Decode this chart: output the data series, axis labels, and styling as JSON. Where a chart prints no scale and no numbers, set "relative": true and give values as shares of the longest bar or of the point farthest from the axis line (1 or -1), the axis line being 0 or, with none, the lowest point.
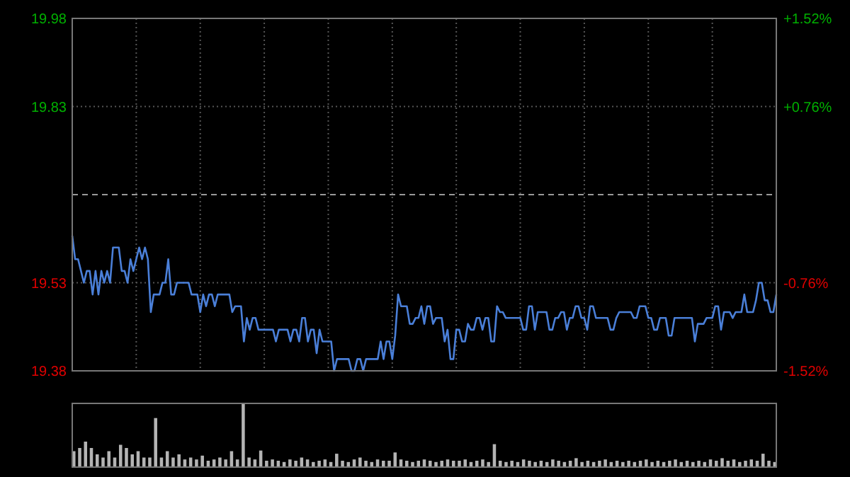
{
  "chart_data": [
    {
      "type": "line",
      "color": "#4a7fd8",
      "categories": [
        null,
        null,
        null,
        null,
        null,
        null,
        null,
        null,
        null,
        null,
        null,
        null,
        null,
        null,
        null,
        null,
        null,
        null,
        null,
        null,
        null,
        null,
        null,
        null,
        null,
        null,
        null,
        null,
        null,
        null,
        null,
        null,
        null,
        null,
        null,
        null,
        null,
        null,
        null,
        null,
        null,
        null,
        null,
        null,
        null,
        null,
        null,
        null,
        null,
        null,
        null,
        null,
        null,
        null,
        null,
        null,
        null,
        null,
        null,
        null,
        null,
        null,
        null,
        null,
        null,
        null,
        null,
        null,
        null,
        null,
        null,
        null,
        null,
        null,
        null,
        null,
        null,
        null,
        null,
        null,
        null,
        null,
        null,
        null,
        null,
        null,
        null,
        null,
        null,
        null,
        null,
        null,
        null,
        null,
        null,
        null,
        null,
        null,
        null,
        null,
        null,
        null,
        null,
        null,
        null,
        null,
        null,
        null,
        null,
        null,
        null,
        null,
        null,
        null,
        null,
        null,
        null,
        null,
        null,
        null,
        null,
        null,
        null,
        null,
        null,
        null,
        null,
        null,
        null,
        null,
        null,
        null,
        null,
        null,
        null,
        null,
        null,
        null,
        null,
        null,
        null,
        null,
        null,
        null,
        null,
        null,
        null,
        null,
        null,
        null,
        null,
        null,
        null,
        null,
        null,
        null,
        null,
        null,
        null,
        null,
        null,
        null,
        null,
        null,
        null,
        null,
        null,
        null,
        null,
        null,
        null,
        null,
        null,
        null,
        null,
        null,
        null,
        null,
        null,
        null,
        null,
        null,
        null,
        null,
        null,
        null,
        null,
        null,
        null,
        null,
        null,
        null,
        null,
        null,
        null,
        null,
        null,
        null,
        null,
        null,
        null,
        null,
        null,
        null,
        null,
        null,
        null,
        null,
        null,
        null,
        null,
        null,
        null,
        null,
        null,
        null,
        null,
        null,
        null,
        null,
        null,
        null,
        null,
        null,
        null,
        null,
        null,
        null,
        null,
        null,
        null,
        null,
        null,
        null,
        null,
        null,
        null,
        null,
        null,
        null,
        null,
        null,
        null
      ],
      "values": [
        19.61,
        19.57,
        19.57,
        19.55,
        19.53,
        19.55,
        19.55,
        19.51,
        19.55,
        19.51,
        19.55,
        19.53,
        19.55,
        19.53,
        19.59,
        19.59,
        19.59,
        19.55,
        19.55,
        19.53,
        19.57,
        19.55,
        19.57,
        19.59,
        19.57,
        19.59,
        19.57,
        19.48,
        19.51,
        19.51,
        19.51,
        19.53,
        19.53,
        19.57,
        19.51,
        19.51,
        19.53,
        19.53,
        19.53,
        19.53,
        19.53,
        19.51,
        19.51,
        19.51,
        19.48,
        19.51,
        19.49,
        19.51,
        19.51,
        19.49,
        19.51,
        19.51,
        19.51,
        19.51,
        19.51,
        19.48,
        19.49,
        19.49,
        19.49,
        19.43,
        19.47,
        19.45,
        19.47,
        19.47,
        19.45,
        19.45,
        19.45,
        19.45,
        19.45,
        19.45,
        19.43,
        19.45,
        19.45,
        19.45,
        19.45,
        19.43,
        19.45,
        19.45,
        19.43,
        19.47,
        19.47,
        19.43,
        19.45,
        19.45,
        19.41,
        19.45,
        19.43,
        19.43,
        19.43,
        19.43,
        19.38,
        19.4,
        19.4,
        19.4,
        19.4,
        19.4,
        19.38,
        19.38,
        19.4,
        19.4,
        19.38,
        19.4,
        19.4,
        19.4,
        19.4,
        19.4,
        19.43,
        19.4,
        19.43,
        19.43,
        19.4,
        19.44,
        19.51,
        19.49,
        19.49,
        19.49,
        19.46,
        19.46,
        19.47,
        19.47,
        19.49,
        19.46,
        19.49,
        19.49,
        19.46,
        19.47,
        19.47,
        19.47,
        19.43,
        19.45,
        19.4,
        19.4,
        19.45,
        19.45,
        19.43,
        19.43,
        19.46,
        19.45,
        19.45,
        19.47,
        19.47,
        19.45,
        19.47,
        19.47,
        19.43,
        19.43,
        19.49,
        19.48,
        19.48,
        19.47,
        19.47,
        19.47,
        19.47,
        19.47,
        19.47,
        19.45,
        19.45,
        19.49,
        19.49,
        19.45,
        19.48,
        19.48,
        19.48,
        19.48,
        19.45,
        19.45,
        19.47,
        19.47,
        19.48,
        19.48,
        19.45,
        19.47,
        19.47,
        19.49,
        19.49,
        19.47,
        19.47,
        19.45,
        19.49,
        19.49,
        19.47,
        19.47,
        19.47,
        19.47,
        19.47,
        19.45,
        19.45,
        19.47,
        19.48,
        19.48,
        19.48,
        19.48,
        19.48,
        19.47,
        19.47,
        19.49,
        19.49,
        19.49,
        19.47,
        19.47,
        19.45,
        19.45,
        19.47,
        19.47,
        19.47,
        19.44,
        19.44,
        19.47,
        19.47,
        19.47,
        19.47,
        19.47,
        19.47,
        19.47,
        19.43,
        19.46,
        19.46,
        19.46,
        19.47,
        19.47,
        19.47,
        19.49,
        19.49,
        19.45,
        19.48,
        19.48,
        19.48,
        19.47,
        19.48,
        19.48,
        19.48,
        19.51,
        19.48,
        19.48,
        19.48,
        19.5,
        19.53,
        19.53,
        19.5,
        19.5,
        19.48,
        19.48,
        19.51
      ],
      "ylim": [
        19.38,
        19.98
      ],
      "yticks": [
        19.38,
        19.53,
        19.83,
        19.98
      ],
      "y2lim": [
        -1.52,
        1.52
      ],
      "y2ticks": [
        {
          "value": -1.52,
          "label": "-1.52%"
        },
        {
          "value": -0.76,
          "label": "-0.76%"
        },
        {
          "value": 0.76,
          "label": "+0.76%"
        },
        {
          "value": 1.52,
          "label": "+1.52%"
        }
      ],
      "ref_lines": [
        {
          "axis": "y",
          "value": 19.68,
          "color": "#999999",
          "line_style": "dashed"
        }
      ],
      "grid": true
    },
    {
      "type": "bar",
      "relative": true,
      "color": "#b4b4b4",
      "categories": [
        null,
        null,
        null,
        null,
        null,
        null,
        null,
        null,
        null,
        null,
        null,
        null,
        null,
        null,
        null,
        null,
        null,
        null,
        null,
        null,
        null,
        null,
        null,
        null,
        null,
        null,
        null,
        null,
        null,
        null,
        null,
        null,
        null,
        null,
        null,
        null,
        null,
        null,
        null,
        null,
        null,
        null,
        null,
        null,
        null,
        null,
        null,
        null,
        null,
        null,
        null,
        null,
        null,
        null,
        null,
        null,
        null,
        null,
        null,
        null,
        null,
        null,
        null,
        null,
        null,
        null,
        null,
        null,
        null,
        null,
        null,
        null,
        null,
        null,
        null,
        null,
        null,
        null,
        null,
        null,
        null,
        null,
        null,
        null,
        null,
        null,
        null,
        null,
        null,
        null,
        null,
        null,
        null,
        null,
        null,
        null,
        null,
        null,
        null,
        null,
        null,
        null,
        null,
        null,
        null,
        null,
        null,
        null,
        null,
        null,
        null,
        null,
        null,
        null,
        null,
        null,
        null,
        null,
        null,
        null,
        null
      ],
      "values": [
        0.25,
        0.3,
        0.4,
        0.3,
        0.2,
        0.15,
        0.25,
        0.15,
        0.35,
        0.3,
        0.2,
        0.25,
        0.15,
        0.15,
        0.77,
        0.15,
        0.25,
        0.15,
        0.2,
        0.12,
        0.15,
        0.12,
        0.18,
        0.1,
        0.12,
        0.15,
        0.12,
        0.25,
        0.12,
        1,
        0.15,
        0.12,
        0.26,
        0.1,
        0.12,
        0.1,
        0.08,
        0.12,
        0.1,
        0.15,
        0.12,
        0.08,
        0.1,
        0.12,
        0.08,
        0.21,
        0.1,
        0.08,
        0.12,
        0.15,
        0.1,
        0.08,
        0.12,
        0.1,
        0.1,
        0.23,
        0.12,
        0.1,
        0.08,
        0.1,
        0.12,
        0.1,
        0.08,
        0.1,
        0.12,
        0.1,
        0.1,
        0.12,
        0.08,
        0.1,
        0.12,
        0.08,
        0.36,
        0.1,
        0.08,
        0.1,
        0.08,
        0.12,
        0.1,
        0.08,
        0.1,
        0.08,
        0.12,
        0.1,
        0.08,
        0.1,
        0.14,
        0.08,
        0.1,
        0.08,
        0.1,
        0.12,
        0.08,
        0.1,
        0.08,
        0.1,
        0.08,
        0.1,
        0.12,
        0.08,
        0.1,
        0.08,
        0.1,
        0.12,
        0.08,
        0.1,
        0.08,
        0.1,
        0.08,
        0.12,
        0.1,
        0.14,
        0.1,
        0.12,
        0.08,
        0.1,
        0.12,
        0.1,
        0.21,
        0.1,
        0.08
      ]
    }
  ]
}
